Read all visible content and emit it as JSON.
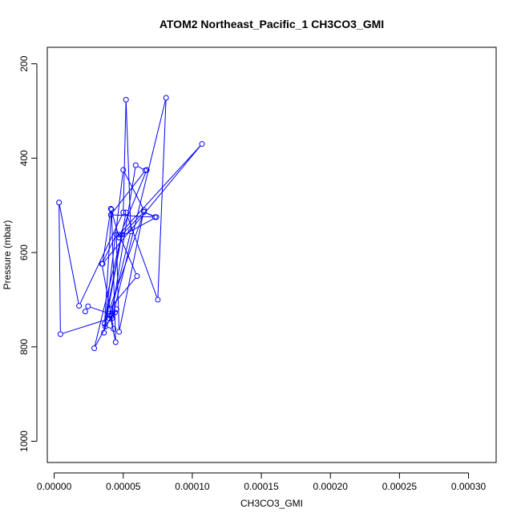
{
  "chart_data": {
    "type": "line",
    "title": "ATOM2 Northeast_Pacific_1 CH3CO3_GMI",
    "xlabel": "CH3CO3_GMI",
    "ylabel": "Pressure (mbar)",
    "xlim": [
      -5e-06,
      0.00032
    ],
    "ylim": [
      1045,
      165
    ],
    "y_reversed": true,
    "x_ticks": [
      0.0,
      5e-05,
      0.0001,
      0.00015,
      0.0002,
      0.00025,
      0.0003
    ],
    "x_tick_labels": [
      "0.00000",
      "0.00005",
      "0.00010",
      "0.00015",
      "0.00020",
      "0.00025",
      "0.00030"
    ],
    "y_ticks": [
      200,
      400,
      600,
      800,
      1000
    ],
    "y_tick_labels": [
      "200",
      "400",
      "600",
      "800",
      "1000"
    ],
    "grid": false,
    "legend": "none",
    "series_color": "#0000ff",
    "series": [
      {
        "x": [
          2.25e-05,
          2.45e-05,
          4.15e-05,
          4.4e-05,
          4e-05,
          4.5e-06,
          3.5e-06,
          1.8e-05,
          5e-05,
          5.2e-05,
          5.55e-05,
          4.05e-05,
          4.45e-05,
          4.15e-05,
          3.65e-05,
          5.2e-05,
          7.5e-05,
          8.1e-05,
          4.2e-05,
          4.5e-05,
          3.7e-05,
          4.3e-05,
          3.45e-05,
          4.5e-05,
          4.7e-05,
          6.5e-05,
          5e-05,
          3.6e-05,
          4.9e-05,
          2.9e-05,
          4.15e-05,
          5.9e-05,
          6.6e-05,
          4.1e-05,
          7.3e-05,
          6.5e-05,
          4.7e-05,
          7.4e-05,
          6.5e-05,
          4e-05,
          6e-05,
          4.7e-05,
          0.000107,
          3.5e-05,
          4.1e-05,
          4.7e-05,
          6.7e-05
        ],
        "y": [
          725,
          714,
          731,
          727,
          740,
          773,
          494,
          713,
          515,
          276,
          555,
          734,
          790,
          509,
          751,
          515,
          700,
          272,
          739,
          720,
          757,
          762,
          624,
          562,
          768,
          510,
          425,
          770,
          562,
          803,
          735,
          415,
          426,
          520,
          525,
          514,
          568,
          525,
          514,
          720,
          650,
          562,
          370,
          624,
          507,
          568,
          425
        ]
      }
    ]
  }
}
